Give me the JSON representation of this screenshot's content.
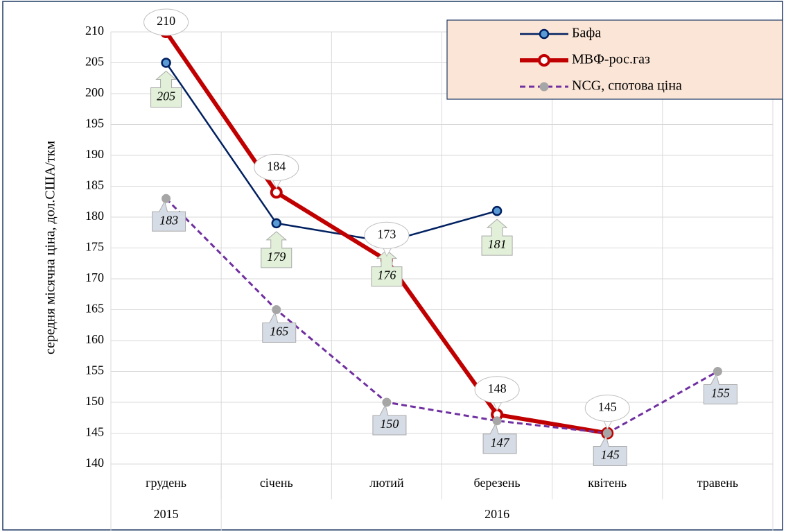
{
  "chart_data": {
    "type": "line",
    "y_label": "середня місячна ціна, дол.США/ткм",
    "categories": [
      "грудень",
      "січень",
      "лютий",
      "березень",
      "квітень",
      "травень"
    ],
    "category_groups": [
      {
        "label": "2015",
        "from": 0,
        "to": 0
      },
      {
        "label": "2016",
        "from": 1,
        "to": 5
      }
    ],
    "ylim": [
      140,
      210
    ],
    "yticks": [
      140,
      145,
      150,
      155,
      160,
      165,
      170,
      175,
      180,
      185,
      190,
      195,
      200,
      205,
      210
    ],
    "grid": true,
    "legend": "upper right",
    "series": [
      {
        "name": "Бафа",
        "color": "#002060",
        "values": [
          205,
          179,
          176,
          181,
          null,
          null
        ]
      },
      {
        "name": "МВФ-рос.газ",
        "color": "#c00000",
        "values": [
          210,
          184,
          173,
          148,
          145,
          null
        ]
      },
      {
        "name": "NCG, спотова ціна",
        "color": "#7030a0",
        "values": [
          183,
          165,
          150,
          147,
          145,
          155
        ]
      }
    ]
  }
}
